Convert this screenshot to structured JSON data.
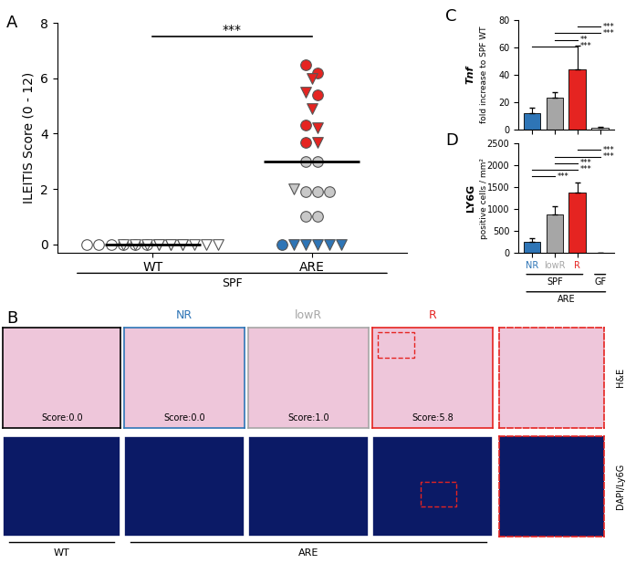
{
  "panel_letters": [
    "A",
    "B",
    "C",
    "D"
  ],
  "chart_data": [
    {
      "type": "scatter",
      "ylabel": "ILEITIS Score (0 - 12)",
      "categories": [
        "WT",
        "ARE"
      ],
      "group_label": "SPF",
      "ylim": [
        -0.3,
        8
      ],
      "yticks": [
        0,
        2,
        4,
        6,
        8
      ],
      "means": [
        0,
        3.0
      ],
      "significance": [
        {
          "between": [
            0,
            1
          ],
          "text": "***"
        }
      ],
      "series": [
        {
          "color": "#ffffff",
          "marker": "circle",
          "values": [
            [
              0,
              0,
              0,
              0,
              0,
              0
            ],
            []
          ]
        },
        {
          "color": "#ffffff",
          "marker": "triangle_down",
          "values": [
            [
              0,
              0,
              0,
              0,
              0,
              0,
              0,
              0,
              0,
              0,
              0,
              0
            ],
            []
          ]
        },
        {
          "color": "#e52421",
          "marker": "circle",
          "values": [
            [],
            [
              6.5,
              6.2,
              5.4,
              4.3,
              3.7
            ]
          ]
        },
        {
          "color": "#e52421",
          "marker": "triangle_down",
          "values": [
            [],
            [
              6.0,
              5.5,
              4.9,
              4.2,
              3.7
            ]
          ]
        },
        {
          "color": "#c8c8c8",
          "marker": "circle",
          "values": [
            [],
            [
              3.0,
              3.0,
              1.9,
              1.9,
              1.9,
              1.0,
              1.0
            ]
          ]
        },
        {
          "color": "#c8c8c8",
          "marker": "triangle_down",
          "values": [
            [],
            [
              2.0
            ]
          ]
        },
        {
          "color": "#2e75b6",
          "marker": "circle",
          "values": [
            [],
            [
              0
            ]
          ]
        },
        {
          "color": "#2e75b6",
          "marker": "triangle_down",
          "values": [
            [],
            [
              0,
              0,
              0,
              0,
              0
            ]
          ]
        }
      ]
    },
    {
      "type": "bar",
      "ylabel_lines": [
        "Tnf",
        "fold increase to SPF WT"
      ],
      "categories": [
        "NR",
        "lowR",
        "R",
        "GF"
      ],
      "tick_labels": "y",
      "values": [
        12,
        23,
        44,
        1
      ],
      "errors": [
        4,
        4,
        17,
        0.5
      ],
      "colors": [
        "#2e75b6",
        "#a6a6a6",
        "#e52421",
        "#ffffff"
      ],
      "ylim": [
        0,
        80
      ],
      "yticks": [
        0,
        20,
        40,
        60,
        80
      ],
      "significance": [
        {
          "between": [
            0,
            2
          ],
          "text": "***"
        },
        {
          "between": [
            1,
            2
          ],
          "text": "**"
        },
        {
          "between": [
            1,
            3
          ],
          "text": "***"
        },
        {
          "between": [
            2,
            3
          ],
          "text": "***"
        }
      ]
    },
    {
      "type": "bar",
      "ylabel_lines": [
        "LY6G",
        "positive cells / mm²"
      ],
      "categories": [
        "NR",
        "lowR",
        "R",
        null
      ],
      "values": [
        250,
        880,
        1370,
        0
      ],
      "errors": [
        70,
        180,
        230,
        0
      ],
      "colors": [
        "#2e75b6",
        "#a6a6a6",
        "#e52421",
        "#ffffff"
      ],
      "ylim": [
        0,
        2500
      ],
      "yticks": [
        0,
        500,
        1000,
        1500,
        2000,
        2500
      ],
      "groups": [
        {
          "label": "SPF",
          "span": [
            0,
            2
          ]
        },
        {
          "label": "GF",
          "span": [
            3,
            3
          ]
        }
      ],
      "supergroup": "ARE",
      "significance": [
        {
          "between": [
            0,
            1
          ],
          "text": "***"
        },
        {
          "between": [
            0,
            2
          ],
          "text": "***"
        },
        {
          "between": [
            1,
            2
          ],
          "text": "***"
        },
        {
          "between": [
            1,
            3
          ],
          "text": "***"
        },
        {
          "between": [
            2,
            3
          ],
          "text": "***"
        }
      ]
    }
  ],
  "images": {
    "columns": [
      "NR",
      "lowR",
      "R"
    ],
    "column_colors": [
      "#2e75b6",
      "#a6a6a6",
      "#e52421"
    ],
    "scores": [
      "Score:0.0",
      "Score:0.0",
      "Score:1.0",
      "Score:5.8"
    ],
    "rows": [
      "H&E",
      "DAPI/Ly6G"
    ],
    "groups": [
      "WT",
      "ARE"
    ]
  }
}
